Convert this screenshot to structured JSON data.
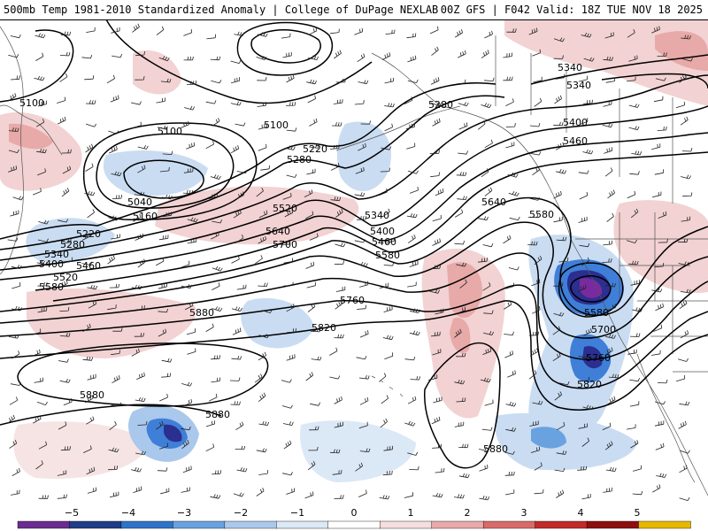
{
  "header": {
    "title_left": "500mb Temp 1981-2010 Standardized Anomaly | College of DuPage NEXLAB",
    "title_right": "00Z GFS | F042 Valid: 18Z TUE NOV 18 2025"
  },
  "colors": {
    "contour": "#000000",
    "coast": "#555555",
    "strong_blue": "#2b2f8f",
    "mid_blue": "#3f7fd8",
    "light_blue": "#c9dcf2",
    "light_red": "#f2d2d2",
    "mid_red": "#e48f8f",
    "purple": "#7a2aa0"
  },
  "contours": {
    "labels": [
      {
        "text": "5100"
      },
      {
        "text": "5100"
      },
      {
        "text": "5100"
      },
      {
        "text": "5040"
      },
      {
        "text": "5160"
      },
      {
        "text": "5220"
      },
      {
        "text": "5280"
      },
      {
        "text": "5340"
      },
      {
        "text": "5400"
      },
      {
        "text": "5460"
      },
      {
        "text": "5520"
      },
      {
        "text": "5580"
      },
      {
        "text": "5220"
      },
      {
        "text": "5280"
      },
      {
        "text": "5520"
      },
      {
        "text": "5640"
      },
      {
        "text": "5700"
      },
      {
        "text": "5340"
      },
      {
        "text": "5400"
      },
      {
        "text": "5460"
      },
      {
        "text": "5580"
      },
      {
        "text": "5760"
      },
      {
        "text": "5820"
      },
      {
        "text": "5880"
      },
      {
        "text": "5880"
      },
      {
        "text": "5880"
      },
      {
        "text": "5880"
      },
      {
        "text": "5280"
      },
      {
        "text": "5340"
      },
      {
        "text": "5340"
      },
      {
        "text": "5400"
      },
      {
        "text": "5460"
      },
      {
        "text": "5640"
      },
      {
        "text": "5580"
      },
      {
        "text": "5580"
      },
      {
        "text": "5700"
      },
      {
        "text": "5760"
      },
      {
        "text": "5820"
      }
    ]
  },
  "colorbar": {
    "ticks": [
      "−5",
      "−4",
      "−3",
      "−2",
      "−1",
      "0",
      "1",
      "2",
      "3",
      "4",
      "5"
    ],
    "colors": [
      "#6b2c91",
      "#1f3c88",
      "#2f73c9",
      "#6aa2e0",
      "#a9c8ec",
      "#dbe8f6",
      "#ffffff",
      "#f6dede",
      "#e8a9a9",
      "#d96a6a",
      "#c22a2a",
      "#8e0f0f",
      "#e6b800"
    ]
  }
}
